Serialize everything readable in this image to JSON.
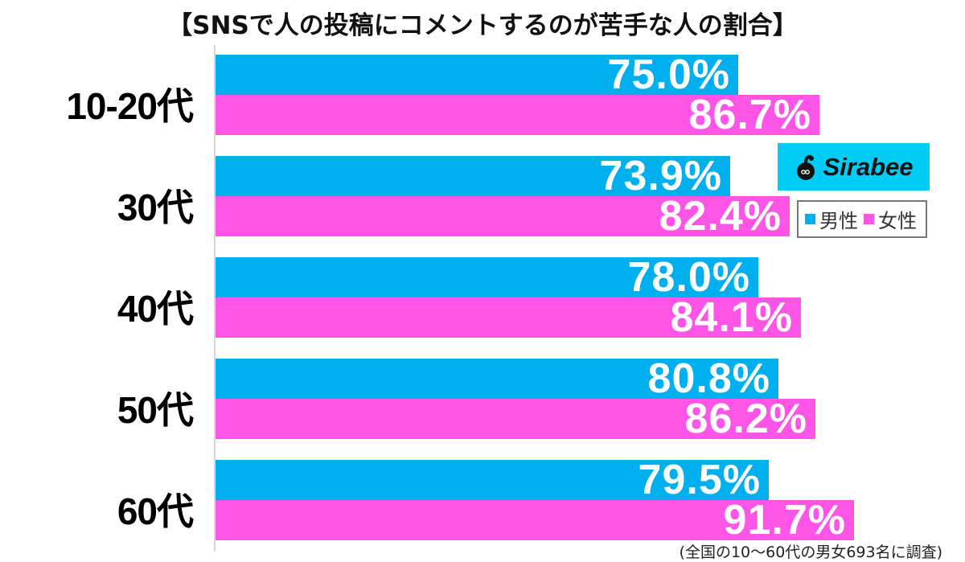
{
  "title": "【SNSで人の投稿にコメントするのが苦手な人の割合】",
  "legend": {
    "male": "男性",
    "female": "女性",
    "male_color": "#00b0ee",
    "female_color": "#ff55e6"
  },
  "logo": {
    "text": "Sirabee",
    "bg_color": "#00ccf5"
  },
  "note": "(全国の10〜60代の男女693名に調査)",
  "groups": [
    {
      "label": "10-20代",
      "male": "75.0%",
      "female": "86.7%"
    },
    {
      "label": "30代",
      "male": "73.9%",
      "female": "82.4%"
    },
    {
      "label": "40代",
      "male": "78.0%",
      "female": "84.1%"
    },
    {
      "label": "50代",
      "male": "80.8%",
      "female": "86.2%"
    },
    {
      "label": "60代",
      "male": "79.5%",
      "female": "91.7%"
    }
  ],
  "chart_data": {
    "type": "bar",
    "orientation": "horizontal",
    "title": "【SNSで人の投稿にコメントするのが苦手な人の割合】",
    "categories": [
      "10-20代",
      "30代",
      "40代",
      "50代",
      "60代"
    ],
    "series": [
      {
        "name": "男性",
        "color": "#00b0ee",
        "values": [
          75.0,
          73.9,
          78.0,
          80.8,
          79.5
        ]
      },
      {
        "name": "女性",
        "color": "#ff55e6",
        "values": [
          86.7,
          82.4,
          84.1,
          86.2,
          91.7
        ]
      }
    ],
    "xlabel": "",
    "ylabel": "",
    "xlim": [
      0,
      100
    ],
    "grid": false,
    "legend_position": "right",
    "annotation": "(全国の10〜60代の男女693名に調査)",
    "value_labels": true
  }
}
